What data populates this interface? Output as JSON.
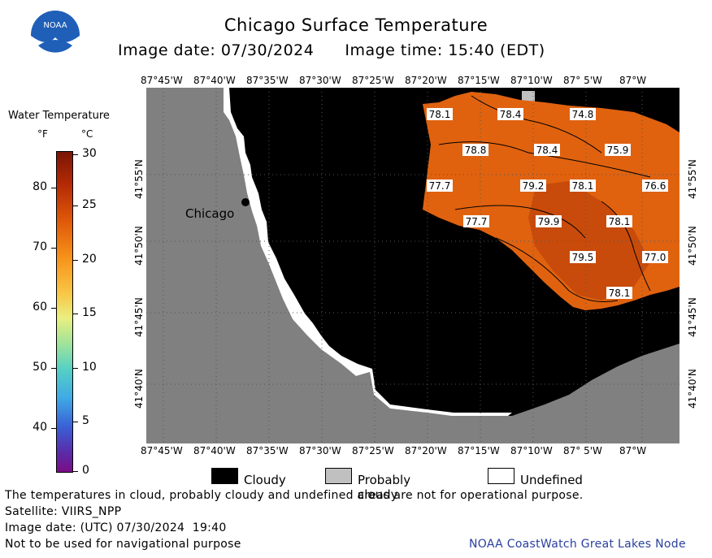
{
  "header": {
    "title": "Chicago Surface Temperature",
    "image_date": "Image date: 07/30/2024",
    "image_time": "Image time: 15:40 (EDT)",
    "logo_text": "NOAA"
  },
  "colorbar": {
    "title": "Water Temperature",
    "unit_f": "°F",
    "unit_c": "°C",
    "f_ticks": [
      "80",
      "70",
      "60",
      "50",
      "40"
    ],
    "c_ticks": [
      "30",
      "25",
      "20",
      "15",
      "10",
      "5",
      "0"
    ]
  },
  "map": {
    "city_label": "Chicago",
    "lon_labels": [
      "87°45'W",
      "87°40'W",
      "87°35'W",
      "87°30'W",
      "87°25'W",
      "87°20'W",
      "87°15'W",
      "87°10'W",
      "87° 5'W",
      "87°W"
    ],
    "lat_labels": [
      "41°55'N",
      "41°50'N",
      "41°45'N",
      "41°40'N"
    ],
    "temperature_labels": [
      "78.1",
      "78.4",
      "74.8",
      "78.8",
      "78.4",
      "75.9",
      "77.7",
      "79.2",
      "78.1",
      "76.6",
      "77.7",
      "79.9",
      "78.1",
      "79.5",
      "77.0",
      "78.1"
    ],
    "colors": {
      "land": "#808080",
      "cloud": "#000000",
      "probably_cloudy": "#c0c0c0",
      "undefined": "#ffffff",
      "water_warm": "#e0620f",
      "water_hot": "#c84b0b"
    }
  },
  "legend": {
    "cloudy": "Cloudy",
    "probably_cloudy": "Probably cloudy",
    "undefined": "Undefined"
  },
  "footer": {
    "disclaimer": "The temperatures in cloud, probably cloudy and undefined areas are not for operational purpose.",
    "satellite": "Satellite: VIIRS_NPP",
    "utc_date": "Image date: (UTC) 07/30/2024  19:40",
    "nav_warning": "Not to be used for navigational purpose",
    "credit": "NOAA CoastWatch Great Lakes Node"
  }
}
